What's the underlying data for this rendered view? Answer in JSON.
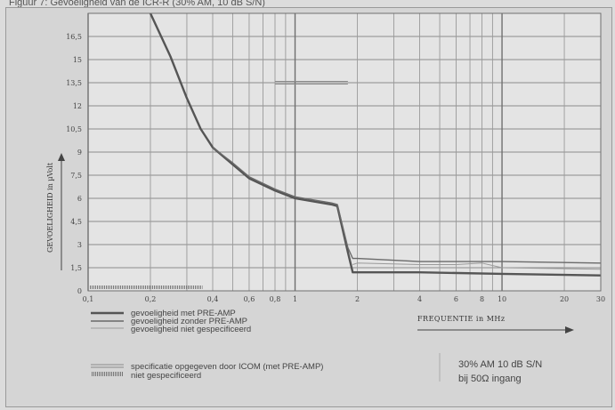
{
  "header": {
    "title": "Figuur 7: Gevoeligheid van de ICR-R (30% AM, 10 dB S/N)"
  },
  "chart_data": {
    "type": "line",
    "title": "",
    "xlabel": "FREQUENTIE in MHz",
    "ylabel": "GEVOELIGHEID in µVolt",
    "xscale": "log",
    "xlim": [
      0.1,
      30
    ],
    "ylim": [
      0,
      18
    ],
    "grid": true,
    "x_ticks": [
      {
        "value": 0.1,
        "label": "0,1"
      },
      {
        "value": 0.2,
        "label": "0,2"
      },
      {
        "value": 0.4,
        "label": "0,4"
      },
      {
        "value": 0.6,
        "label": "0,6"
      },
      {
        "value": 0.8,
        "label": "0,8"
      },
      {
        "value": 1,
        "label": "1"
      },
      {
        "value": 2,
        "label": "2"
      },
      {
        "value": 4,
        "label": "4"
      },
      {
        "value": 6,
        "label": "6"
      },
      {
        "value": 8,
        "label": "8"
      },
      {
        "value": 10,
        "label": "10"
      },
      {
        "value": 20,
        "label": "20"
      },
      {
        "value": 30,
        "label": "30"
      }
    ],
    "y_ticks": [
      {
        "value": 0,
        "label": "0"
      },
      {
        "value": 1.5,
        "label": "1,5"
      },
      {
        "value": 3,
        "label": "3"
      },
      {
        "value": 4.5,
        "label": "4,5"
      },
      {
        "value": 6,
        "label": "6"
      },
      {
        "value": 7.5,
        "label": "7,5"
      },
      {
        "value": 9,
        "label": "9"
      },
      {
        "value": 10.5,
        "label": "10,5"
      },
      {
        "value": 12,
        "label": "12"
      },
      {
        "value": 13.5,
        "label": "13,5"
      },
      {
        "value": 15,
        "label": "15"
      },
      {
        "value": 16.5,
        "label": "16,5"
      }
    ],
    "series": [
      {
        "name": "gevoeligheid met PRE-AMP",
        "style": "solid-thick",
        "color": "#555555",
        "x": [
          0.2,
          0.25,
          0.3,
          0.35,
          0.4,
          0.5,
          0.6,
          0.8,
          1.0,
          1.5,
          1.6,
          1.8,
          1.9,
          2,
          4,
          10,
          30
        ],
        "y": [
          18,
          15.2,
          12.5,
          10.5,
          9.3,
          8.2,
          7.3,
          6.5,
          6.0,
          5.6,
          5.5,
          2.5,
          1.2,
          1.2,
          1.2,
          1.1,
          1.0
        ]
      },
      {
        "name": "gevoeligheid zonder PRE-AMP",
        "style": "solid",
        "color": "#6a6a6a",
        "x": [
          0.4,
          0.5,
          0.6,
          0.8,
          1.0,
          1.5,
          1.6,
          1.8,
          1.9,
          2,
          4,
          10,
          30
        ],
        "y": [
          9.3,
          8.3,
          7.4,
          6.6,
          6.1,
          5.7,
          5.6,
          2.8,
          2.1,
          2.1,
          1.9,
          1.9,
          1.8
        ]
      },
      {
        "name": "gevoeligheid niet gespecificeerd",
        "style": "thin",
        "color": "#9a9a9a",
        "x": [
          1.9,
          2,
          4,
          6,
          8,
          10,
          30
        ],
        "y": [
          1.7,
          1.8,
          1.7,
          1.7,
          1.8,
          1.5,
          1.4
        ]
      }
    ],
    "spec_line": {
      "name": "specificatie opgegeven door ICOM (met PRE-AMP)",
      "x": [
        0.8,
        1.8
      ],
      "y": [
        13.5,
        13.5
      ]
    },
    "unspecified_band": {
      "name": "niet gespecificeerd",
      "x": [
        0.1,
        0.35
      ],
      "y": 0.3
    },
    "legend": [
      {
        "label": "gevoeligheid met PRE-AMP",
        "style": "solid-thick"
      },
      {
        "label": "gevoeligheid zonder PRE-AMP",
        "style": "solid"
      },
      {
        "label": "gevoeligheid niet gespecificeerd",
        "style": "thin"
      },
      {
        "label": "specificatie opgegeven door ICOM (met PRE-AMP)",
        "style": "double"
      },
      {
        "label": "niet gespecificeerd",
        "style": "hatched"
      }
    ],
    "legend_placement": "bottom-left",
    "annotation": {
      "line1": "30% AM 10 dB S/N",
      "line2": "bij 50Ω ingang"
    }
  }
}
